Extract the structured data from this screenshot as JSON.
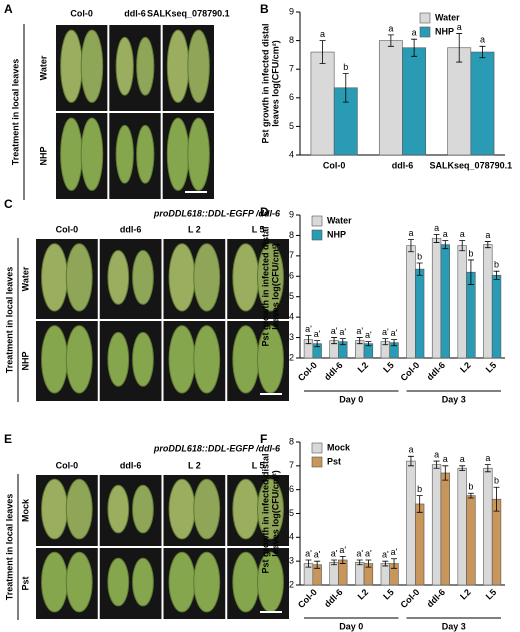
{
  "photos": [
    {
      "letter": "A",
      "columns": [
        "Col-0",
        "ddl-6",
        "SALKseq_078790.1"
      ],
      "rows": [
        "Water",
        "NHP"
      ],
      "side_label": "Treatment in local leaves"
    },
    {
      "letter": "C",
      "header": "proDDL618::DDL-EGFP /ddl-6",
      "columns": [
        "Col-0",
        "ddl-6",
        "L 2",
        "L 5"
      ],
      "rows": [
        "Water",
        "NHP"
      ],
      "side_label": "Treatment in local leaves"
    },
    {
      "letter": "E",
      "header": "proDDL618::DDL-EGFP /ddl-6",
      "columns": [
        "Col-0",
        "ddl-6",
        "L 2",
        "L 5"
      ],
      "rows": [
        "Mock",
        "Pst"
      ],
      "side_label": "Treatment in local leaves"
    }
  ],
  "chart_data": [
    {
      "type": "bar",
      "panel": "B",
      "ylabel": [
        "Pst growth in infected distal",
        "leaves log(CFU/cm²)"
      ],
      "categories": [
        "Col-0",
        "ddl-6",
        "SALKseq_078790.1"
      ],
      "series": [
        {
          "name": "Water",
          "color": "#d9d9d9",
          "values": [
            7.6,
            8.0,
            7.75
          ],
          "errors": [
            0.4,
            0.2,
            0.5
          ],
          "letters": [
            "a",
            "a",
            "a"
          ]
        },
        {
          "name": "NHP",
          "color": "#2a9bb5",
          "values": [
            6.35,
            7.75,
            7.6
          ],
          "errors": [
            0.5,
            0.3,
            0.2
          ],
          "letters": [
            "b",
            "a",
            "a"
          ]
        }
      ],
      "ylim": [
        4,
        9
      ],
      "yticks": [
        4,
        5,
        6,
        7,
        8,
        9
      ],
      "legend": "upper right"
    },
    {
      "type": "bar",
      "panel": "D",
      "ylabel": [
        "Pst growth in infected distal",
        "leaves log(CFU/cm²)"
      ],
      "categories": [
        "Col-0",
        "ddl-6",
        "L2",
        "L5",
        "Col-0",
        "ddl-6",
        "L2",
        "L5"
      ],
      "group_labels": [
        "Day 0",
        "Day 3"
      ],
      "x_label_rotation": -45,
      "series": [
        {
          "name": "Water",
          "color": "#d9d9d9",
          "values": [
            2.9,
            2.85,
            2.85,
            2.8,
            7.5,
            7.85,
            7.5,
            7.55
          ],
          "errors": [
            0.2,
            0.15,
            0.15,
            0.15,
            0.3,
            0.2,
            0.25,
            0.15
          ],
          "letters": [
            "a'",
            "a'",
            "a'",
            "a'",
            "a",
            "a",
            "a",
            "a"
          ]
        },
        {
          "name": "NHP",
          "color": "#2a9bb5",
          "values": [
            2.7,
            2.8,
            2.7,
            2.75,
            6.35,
            7.55,
            6.2,
            6.05
          ],
          "errors": [
            0.15,
            0.15,
            0.1,
            0.15,
            0.3,
            0.2,
            0.6,
            0.2
          ],
          "letters": [
            "a'",
            "a'",
            "a'",
            "a'",
            "b",
            "a",
            "b",
            "b"
          ]
        }
      ],
      "ylim": [
        2,
        9
      ],
      "yticks": [
        2,
        3,
        4,
        5,
        6,
        7,
        8,
        9
      ],
      "legend": "upper left"
    },
    {
      "type": "bar",
      "panel": "F",
      "ylabel": [
        "Pst growth in infected distal",
        "leaves log(CFU/cm²)"
      ],
      "categories": [
        "Col-0",
        "ddl-6",
        "L2",
        "L5",
        "Col-0",
        "ddl-6",
        "L2",
        "L5"
      ],
      "group_labels": [
        "Day 0",
        "Day 3"
      ],
      "x_label_rotation": -45,
      "series": [
        {
          "name": "Mock",
          "color": "#d9d9d9",
          "values": [
            2.9,
            2.95,
            2.95,
            2.9,
            7.2,
            7.05,
            6.9,
            6.9
          ],
          "errors": [
            0.15,
            0.1,
            0.1,
            0.1,
            0.2,
            0.15,
            0.1,
            0.15
          ],
          "letters": [
            "a'",
            "a'",
            "a'",
            "a'",
            "a",
            "a",
            "a",
            "a"
          ]
        },
        {
          "name": "Pst",
          "color": "#c8955a",
          "values": [
            2.85,
            3.05,
            2.9,
            2.9,
            5.4,
            6.7,
            5.75,
            5.6
          ],
          "errors": [
            0.15,
            0.15,
            0.15,
            0.2,
            0.35,
            0.3,
            0.1,
            0.5
          ],
          "letters": [
            "a'",
            "a'",
            "a'",
            "a'",
            "b",
            "a",
            "b",
            "b"
          ]
        }
      ],
      "ylim": [
        2,
        8
      ],
      "yticks": [
        2,
        3,
        4,
        5,
        6,
        7,
        8
      ],
      "legend": "upper left"
    }
  ]
}
